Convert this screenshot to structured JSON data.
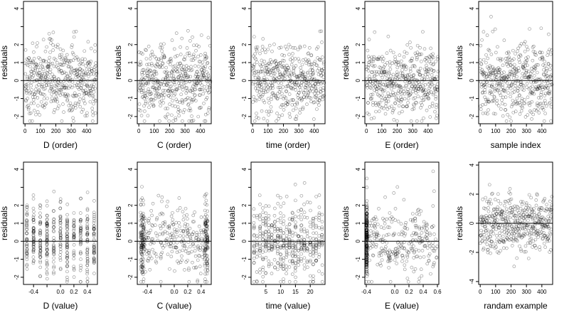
{
  "chart_data": [
    {
      "type": "scatter",
      "id": "d-order",
      "xlabel": "D (order)",
      "ylabel": "residuals",
      "xlim": [
        -10,
        470
      ],
      "ylim": [
        -2.4,
        4.4
      ],
      "xticks": [
        0,
        100,
        200,
        300,
        400
      ],
      "xtick_labels": [
        "0",
        "100",
        "200",
        "300",
        "400"
      ],
      "yticks": [
        -2,
        -1,
        0,
        1,
        2,
        3,
        4
      ],
      "ytick_labels": [
        "-2",
        "-1",
        "0",
        "1",
        "2",
        "",
        "4"
      ],
      "hline": 0,
      "n_points": 470,
      "x_range": [
        0,
        465
      ],
      "y_center": 0,
      "y_sd": 1.0,
      "point_style": "open-circle",
      "color": "#000000"
    },
    {
      "type": "scatter",
      "id": "c-order",
      "xlabel": "C (order)",
      "ylabel": "residuals",
      "xlim": [
        -10,
        470
      ],
      "ylim": [
        -2.4,
        4.4
      ],
      "xticks": [
        0,
        100,
        200,
        300,
        400
      ],
      "xtick_labels": [
        "0",
        "100",
        "200",
        "300",
        "400"
      ],
      "yticks": [
        -2,
        -1,
        0,
        1,
        2,
        3,
        4
      ],
      "ytick_labels": [
        "-2",
        "-1",
        "0",
        "1",
        "2",
        "",
        "4"
      ],
      "hline": 0,
      "n_points": 470,
      "x_range": [
        0,
        465
      ],
      "y_center": 0,
      "y_sd": 1.0,
      "point_style": "open-circle",
      "color": "#000000"
    },
    {
      "type": "scatter",
      "id": "time-order",
      "xlabel": "time (order)",
      "ylabel": "residuals",
      "xlim": [
        -10,
        470
      ],
      "ylim": [
        -2.4,
        4.4
      ],
      "xticks": [
        0,
        100,
        200,
        300,
        400
      ],
      "xtick_labels": [
        "0",
        "100",
        "200",
        "300",
        "400"
      ],
      "yticks": [
        -2,
        -1,
        0,
        1,
        2,
        3,
        4
      ],
      "ytick_labels": [
        "-2",
        "-1",
        "0",
        "1",
        "2",
        "",
        "4"
      ],
      "hline": 0,
      "n_points": 470,
      "x_range": [
        0,
        465
      ],
      "y_center": 0,
      "y_sd": 1.0,
      "point_style": "open-circle",
      "color": "#000000"
    },
    {
      "type": "scatter",
      "id": "e-order",
      "xlabel": "E (order)",
      "ylabel": "residuals",
      "xlim": [
        -10,
        470
      ],
      "ylim": [
        -2.4,
        4.4
      ],
      "xticks": [
        0,
        100,
        200,
        300,
        400
      ],
      "xtick_labels": [
        "0",
        "100",
        "200",
        "300",
        "400"
      ],
      "yticks": [
        -2,
        -1,
        0,
        1,
        2,
        3,
        4
      ],
      "ytick_labels": [
        "-2",
        "-1",
        "0",
        "1",
        "2",
        "",
        "4"
      ],
      "hline": 0,
      "n_points": 470,
      "x_range": [
        0,
        465
      ],
      "y_center": 0,
      "y_sd": 1.0,
      "point_style": "open-circle",
      "color": "#000000"
    },
    {
      "type": "scatter",
      "id": "sample-index",
      "xlabel": "sample index",
      "ylabel": "residuals",
      "xlim": [
        -10,
        470
      ],
      "ylim": [
        -2.4,
        4.4
      ],
      "xticks": [
        0,
        100,
        200,
        300,
        400
      ],
      "xtick_labels": [
        "0",
        "100",
        "200",
        "300",
        "400"
      ],
      "yticks": [
        -2,
        -1,
        0,
        1,
        2,
        3,
        4
      ],
      "ytick_labels": [
        "-2",
        "-1",
        "0",
        "1",
        "2",
        "",
        "4"
      ],
      "hline": 0,
      "n_points": 470,
      "x_range": [
        0,
        465
      ],
      "y_center": 0,
      "y_sd": 1.0,
      "point_style": "open-circle",
      "color": "#000000"
    },
    {
      "type": "scatter",
      "id": "d-value",
      "xlabel": "D (value)",
      "ylabel": "residuals",
      "xlim": [
        -0.55,
        0.55
      ],
      "ylim": [
        -2.4,
        4.4
      ],
      "xticks": [
        -0.4,
        -0.2,
        0.0,
        0.2,
        0.4
      ],
      "xtick_labels": [
        "-0.4",
        "",
        "0.0",
        "0.2",
        "0.4"
      ],
      "yticks": [
        -2,
        -1,
        0,
        1,
        2,
        3,
        4
      ],
      "ytick_labels": [
        "-2",
        "-1",
        "0",
        "1",
        "2",
        "",
        "4"
      ],
      "hline": 0,
      "n_points": 470,
      "x_levels": [
        -0.5,
        -0.4,
        -0.3,
        -0.2,
        -0.1,
        0.0,
        0.1,
        0.2,
        0.3,
        0.4,
        0.5
      ],
      "y_center": 0,
      "y_sd": 1.0,
      "point_style": "open-circle",
      "color": "#000000"
    },
    {
      "type": "scatter",
      "id": "c-value",
      "xlabel": "C (value)",
      "ylabel": "residuals",
      "xlim": [
        -0.55,
        0.55
      ],
      "ylim": [
        -2.4,
        4.4
      ],
      "xticks": [
        -0.4,
        -0.2,
        0.0,
        0.2,
        0.4
      ],
      "xtick_labels": [
        "-0.4",
        "",
        "0.0",
        "0.2",
        "0.4"
      ],
      "yticks": [
        -2,
        -1,
        0,
        1,
        2,
        3,
        4
      ],
      "ytick_labels": [
        "-2",
        "-1",
        "0",
        "1",
        "2",
        "",
        "4"
      ],
      "hline": 0,
      "n_points": 470,
      "x_range": [
        -0.5,
        0.5
      ],
      "x_dense_ends": true,
      "y_center": 0,
      "y_sd": 1.0,
      "point_style": "open-circle",
      "color": "#000000"
    },
    {
      "type": "scatter",
      "id": "time-value",
      "xlabel": "time (value)",
      "ylabel": "residuals",
      "xlim": [
        0,
        25
      ],
      "ylim": [
        -2.4,
        4.4
      ],
      "xticks": [
        5,
        10,
        15,
        20
      ],
      "xtick_labels": [
        "5",
        "10",
        "15",
        "20"
      ],
      "yticks": [
        -2,
        -1,
        0,
        1,
        2,
        3,
        4
      ],
      "ytick_labels": [
        "-2",
        "-1",
        "0",
        "1",
        "2",
        "",
        "4"
      ],
      "hline": 0,
      "n_points": 470,
      "x_levels": [
        1,
        2,
        3,
        4,
        5,
        6,
        7,
        8,
        9,
        10,
        11,
        12,
        13,
        14,
        15,
        16,
        17,
        18,
        19,
        20,
        21,
        22,
        23,
        24
      ],
      "y_center": 0,
      "y_sd": 1.0,
      "point_style": "open-circle",
      "color": "#000000"
    },
    {
      "type": "scatter",
      "id": "e-value",
      "xlabel": "E (value)",
      "ylabel": "residuals",
      "xlim": [
        -0.42,
        0.62
      ],
      "ylim": [
        -2.4,
        4.4
      ],
      "xticks": [
        -0.4,
        0.0,
        0.2,
        0.4,
        0.6
      ],
      "xtick_labels": [
        "-0.4",
        "0.0",
        "0.2",
        "0.4",
        "0.6"
      ],
      "yticks": [
        -2,
        -1,
        0,
        1,
        2,
        3,
        4
      ],
      "ytick_labels": [
        "-2",
        "-1",
        "0",
        "1",
        "2",
        "",
        "4"
      ],
      "hline": 0,
      "n_points": 470,
      "x_cluster_at": -0.4,
      "x_range": [
        -0.4,
        0.6
      ],
      "y_center": 0,
      "y_sd": 1.0,
      "point_style": "open-circle",
      "color": "#000000"
    },
    {
      "type": "scatter",
      "id": "random-example",
      "xlabel": "randam example",
      "ylabel": "residuals",
      "xlim": [
        -10,
        470
      ],
      "ylim": [
        -4.2,
        4.2
      ],
      "xticks": [
        0,
        100,
        200,
        300,
        400
      ],
      "xtick_labels": [
        "0",
        "100",
        "200",
        "300",
        "400"
      ],
      "yticks": [
        -4,
        -2,
        0,
        2,
        4
      ],
      "ytick_labels": [
        "-4",
        "-2",
        "0",
        "2",
        "4"
      ],
      "hline": 0,
      "n_points": 470,
      "x_range": [
        0,
        465
      ],
      "y_center": 0,
      "y_sd": 1.0,
      "point_style": "open-circle",
      "color": "#000000"
    }
  ]
}
